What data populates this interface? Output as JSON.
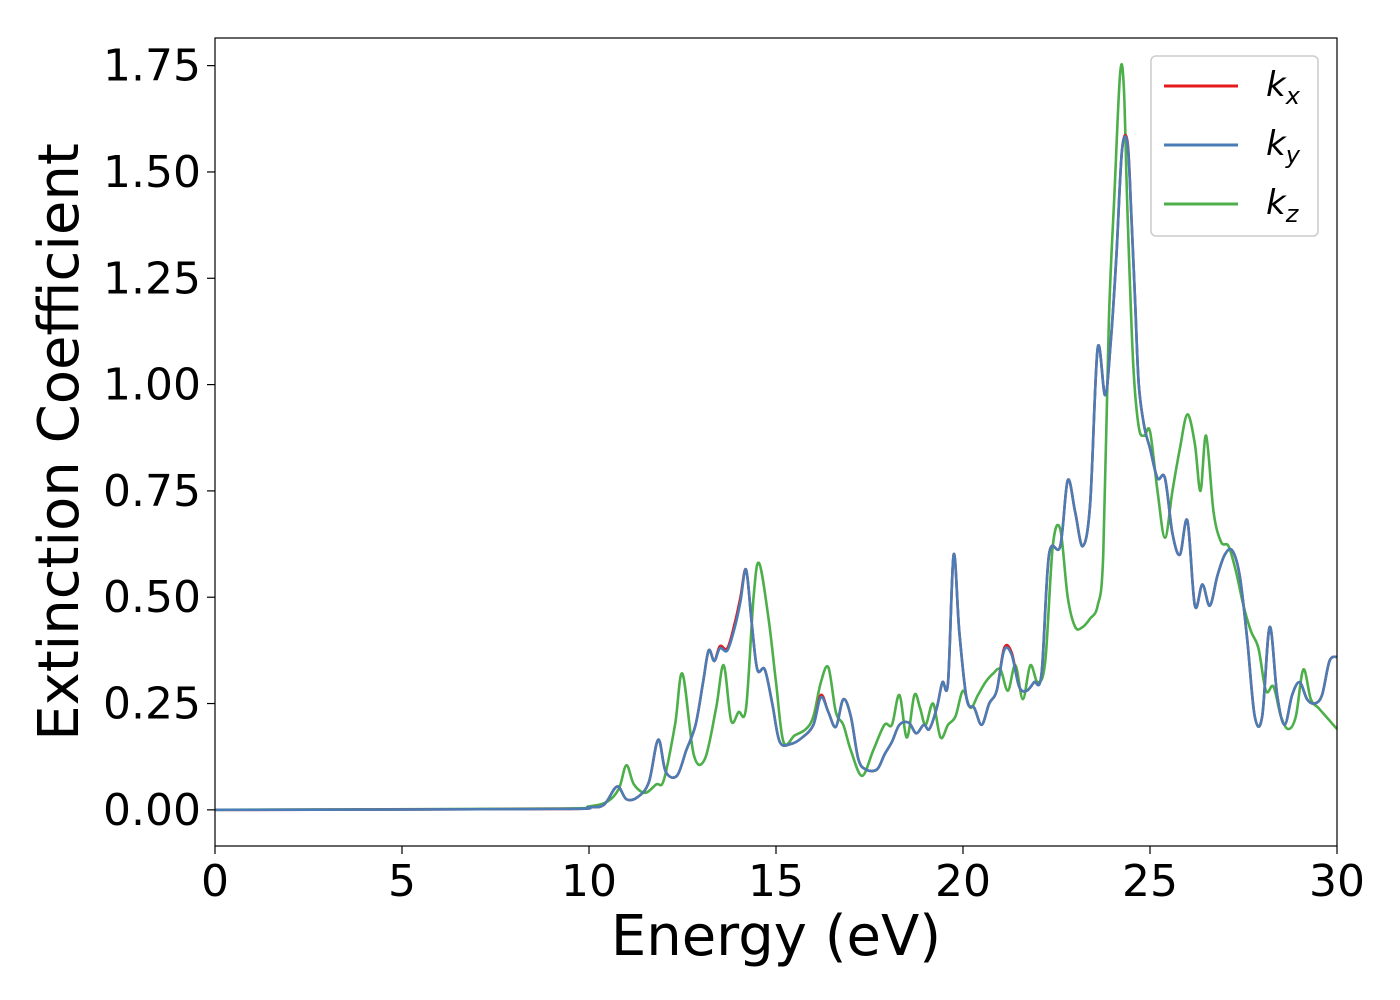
{
  "chart_data": {
    "type": "line",
    "title": "",
    "xlabel": "Energy (eV)",
    "ylabel": "Extinction Coefficient",
    "xlim": [
      0,
      30
    ],
    "ylim": [
      -0.085,
      1.815
    ],
    "xticks": [
      0,
      5,
      10,
      15,
      20,
      25,
      30
    ],
    "xtick_labels": [
      "0",
      "5",
      "10",
      "15",
      "20",
      "25",
      "30"
    ],
    "yticks": [
      0.0,
      0.25,
      0.5,
      0.75,
      1.0,
      1.25,
      1.5,
      1.75
    ],
    "ytick_labels": [
      "0.00",
      "0.25",
      "0.50",
      "0.75",
      "1.00",
      "1.25",
      "1.50",
      "1.75"
    ],
    "grid": false,
    "legend_position": "top-right",
    "series": [
      {
        "name": "k_x",
        "label_base": "k",
        "label_sub": "x",
        "color": "#e41a1c",
        "x": [
          0,
          9.0,
          10.0,
          10.4,
          10.75,
          11.0,
          11.3,
          11.6,
          11.85,
          12.05,
          12.35,
          12.6,
          12.85,
          13.05,
          13.2,
          13.35,
          13.5,
          13.7,
          13.9,
          14.05,
          14.2,
          14.35,
          14.5,
          14.7,
          14.9,
          15.1,
          15.4,
          15.7,
          16.0,
          16.2,
          16.4,
          16.6,
          16.8,
          17.0,
          17.2,
          17.4,
          17.7,
          17.9,
          18.1,
          18.3,
          18.55,
          18.75,
          18.95,
          19.1,
          19.3,
          19.45,
          19.6,
          19.75,
          19.9,
          20.1,
          20.3,
          20.5,
          20.7,
          20.9,
          21.1,
          21.3,
          21.5,
          21.7,
          21.9,
          22.1,
          22.3,
          22.6,
          22.8,
          23.0,
          23.2,
          23.4,
          23.6,
          23.8,
          23.95,
          24.1,
          24.25,
          24.4,
          24.5,
          24.6,
          24.7,
          24.85,
          25.0,
          25.2,
          25.4,
          25.6,
          25.8,
          26.0,
          26.2,
          26.4,
          26.6,
          26.8,
          27.0,
          27.2,
          27.4,
          27.6,
          27.8,
          28.0,
          28.2,
          28.4,
          28.6,
          28.8,
          29.0,
          29.2,
          29.4,
          29.6,
          29.8,
          30.0
        ],
        "y": [
          0.0,
          0.002,
          0.006,
          0.012,
          0.055,
          0.025,
          0.03,
          0.065,
          0.165,
          0.09,
          0.08,
          0.14,
          0.2,
          0.3,
          0.375,
          0.35,
          0.385,
          0.38,
          0.44,
          0.5,
          0.565,
          0.44,
          0.33,
          0.33,
          0.25,
          0.16,
          0.155,
          0.17,
          0.2,
          0.27,
          0.23,
          0.195,
          0.26,
          0.22,
          0.12,
          0.095,
          0.095,
          0.13,
          0.16,
          0.2,
          0.205,
          0.18,
          0.2,
          0.19,
          0.24,
          0.3,
          0.3,
          0.6,
          0.42,
          0.26,
          0.24,
          0.2,
          0.25,
          0.28,
          0.38,
          0.37,
          0.29,
          0.28,
          0.3,
          0.32,
          0.6,
          0.62,
          0.775,
          0.7,
          0.62,
          0.72,
          1.085,
          0.975,
          1.1,
          1.3,
          1.55,
          1.57,
          1.4,
          1.2,
          1.0,
          0.9,
          0.85,
          0.78,
          0.78,
          0.65,
          0.6,
          0.68,
          0.48,
          0.53,
          0.48,
          0.55,
          0.6,
          0.61,
          0.55,
          0.4,
          0.22,
          0.22,
          0.43,
          0.27,
          0.2,
          0.27,
          0.3,
          0.26,
          0.25,
          0.27,
          0.35,
          0.36
        ]
      },
      {
        "name": "k_y",
        "label_base": "k",
        "label_sub": "y",
        "color": "#4a7db5",
        "x": [
          0,
          9.0,
          10.0,
          10.4,
          10.75,
          11.0,
          11.3,
          11.6,
          11.85,
          12.05,
          12.35,
          12.6,
          12.85,
          13.05,
          13.2,
          13.35,
          13.5,
          13.7,
          13.9,
          14.05,
          14.2,
          14.35,
          14.5,
          14.7,
          14.9,
          15.1,
          15.4,
          15.7,
          16.0,
          16.2,
          16.4,
          16.6,
          16.8,
          17.0,
          17.2,
          17.4,
          17.7,
          17.9,
          18.1,
          18.3,
          18.55,
          18.75,
          18.95,
          19.1,
          19.3,
          19.45,
          19.6,
          19.75,
          19.9,
          20.1,
          20.3,
          20.5,
          20.7,
          20.9,
          21.1,
          21.3,
          21.5,
          21.7,
          21.9,
          22.1,
          22.3,
          22.6,
          22.8,
          23.0,
          23.2,
          23.4,
          23.6,
          23.8,
          23.95,
          24.1,
          24.25,
          24.4,
          24.5,
          24.6,
          24.7,
          24.85,
          25.0,
          25.2,
          25.4,
          25.6,
          25.8,
          26.0,
          26.2,
          26.4,
          26.6,
          26.8,
          27.0,
          27.2,
          27.4,
          27.6,
          27.8,
          28.0,
          28.2,
          28.4,
          28.6,
          28.8,
          29.0,
          29.2,
          29.4,
          29.6,
          29.8,
          30.0
        ],
        "y": [
          0.0,
          0.002,
          0.006,
          0.012,
          0.055,
          0.025,
          0.03,
          0.065,
          0.165,
          0.09,
          0.08,
          0.14,
          0.2,
          0.3,
          0.375,
          0.35,
          0.38,
          0.375,
          0.43,
          0.49,
          0.565,
          0.44,
          0.33,
          0.33,
          0.25,
          0.16,
          0.155,
          0.17,
          0.2,
          0.265,
          0.23,
          0.195,
          0.26,
          0.22,
          0.12,
          0.095,
          0.095,
          0.13,
          0.16,
          0.2,
          0.205,
          0.18,
          0.2,
          0.19,
          0.24,
          0.3,
          0.3,
          0.6,
          0.42,
          0.26,
          0.24,
          0.2,
          0.25,
          0.28,
          0.375,
          0.365,
          0.29,
          0.28,
          0.3,
          0.32,
          0.6,
          0.62,
          0.775,
          0.7,
          0.62,
          0.72,
          1.085,
          0.975,
          1.1,
          1.3,
          1.55,
          1.565,
          1.4,
          1.2,
          1.0,
          0.9,
          0.85,
          0.78,
          0.78,
          0.65,
          0.6,
          0.68,
          0.48,
          0.53,
          0.48,
          0.55,
          0.6,
          0.61,
          0.55,
          0.4,
          0.22,
          0.22,
          0.43,
          0.27,
          0.2,
          0.27,
          0.3,
          0.26,
          0.25,
          0.27,
          0.35,
          0.36
        ]
      },
      {
        "name": "k_z",
        "label_base": "k",
        "label_sub": "z",
        "color": "#4daf4a",
        "x": [
          0,
          9.0,
          10.0,
          10.5,
          10.8,
          11.0,
          11.2,
          11.5,
          11.8,
          12.0,
          12.3,
          12.5,
          12.8,
          13.1,
          13.4,
          13.6,
          13.8,
          14.0,
          14.2,
          14.4,
          14.55,
          14.8,
          15.0,
          15.2,
          15.5,
          15.8,
          16.0,
          16.2,
          16.4,
          16.6,
          16.8,
          17.0,
          17.3,
          17.6,
          17.9,
          18.1,
          18.3,
          18.5,
          18.7,
          18.85,
          19.0,
          19.2,
          19.4,
          19.6,
          19.8,
          20.0,
          20.2,
          20.4,
          20.6,
          20.8,
          21.0,
          21.2,
          21.4,
          21.6,
          21.8,
          22.0,
          22.2,
          22.4,
          22.6,
          22.8,
          23.0,
          23.2,
          23.4,
          23.6,
          23.75,
          23.9,
          24.05,
          24.2,
          24.3,
          24.4,
          24.55,
          24.7,
          24.85,
          25.0,
          25.2,
          25.4,
          25.6,
          25.8,
          26.0,
          26.2,
          26.35,
          26.5,
          26.7,
          26.9,
          27.1,
          27.3,
          27.5,
          27.7,
          27.9,
          28.1,
          28.3,
          28.5,
          28.7,
          28.9,
          29.1,
          29.3,
          29.5,
          29.7,
          30.0
        ],
        "y": [
          0.0,
          0.003,
          0.008,
          0.02,
          0.05,
          0.105,
          0.06,
          0.04,
          0.06,
          0.07,
          0.2,
          0.32,
          0.13,
          0.12,
          0.24,
          0.34,
          0.21,
          0.23,
          0.24,
          0.5,
          0.58,
          0.45,
          0.3,
          0.16,
          0.175,
          0.19,
          0.22,
          0.3,
          0.335,
          0.23,
          0.2,
          0.14,
          0.08,
          0.14,
          0.2,
          0.2,
          0.27,
          0.17,
          0.27,
          0.24,
          0.2,
          0.25,
          0.17,
          0.2,
          0.22,
          0.28,
          0.24,
          0.27,
          0.3,
          0.32,
          0.33,
          0.28,
          0.34,
          0.26,
          0.34,
          0.3,
          0.35,
          0.62,
          0.66,
          0.5,
          0.43,
          0.43,
          0.45,
          0.48,
          0.6,
          1.15,
          1.45,
          1.73,
          1.7,
          1.4,
          1.05,
          0.9,
          0.88,
          0.89,
          0.75,
          0.64,
          0.75,
          0.85,
          0.93,
          0.86,
          0.75,
          0.88,
          0.7,
          0.63,
          0.62,
          0.56,
          0.48,
          0.42,
          0.38,
          0.28,
          0.29,
          0.22,
          0.19,
          0.22,
          0.33,
          0.26,
          0.24,
          0.22,
          0.19
        ]
      }
    ]
  }
}
